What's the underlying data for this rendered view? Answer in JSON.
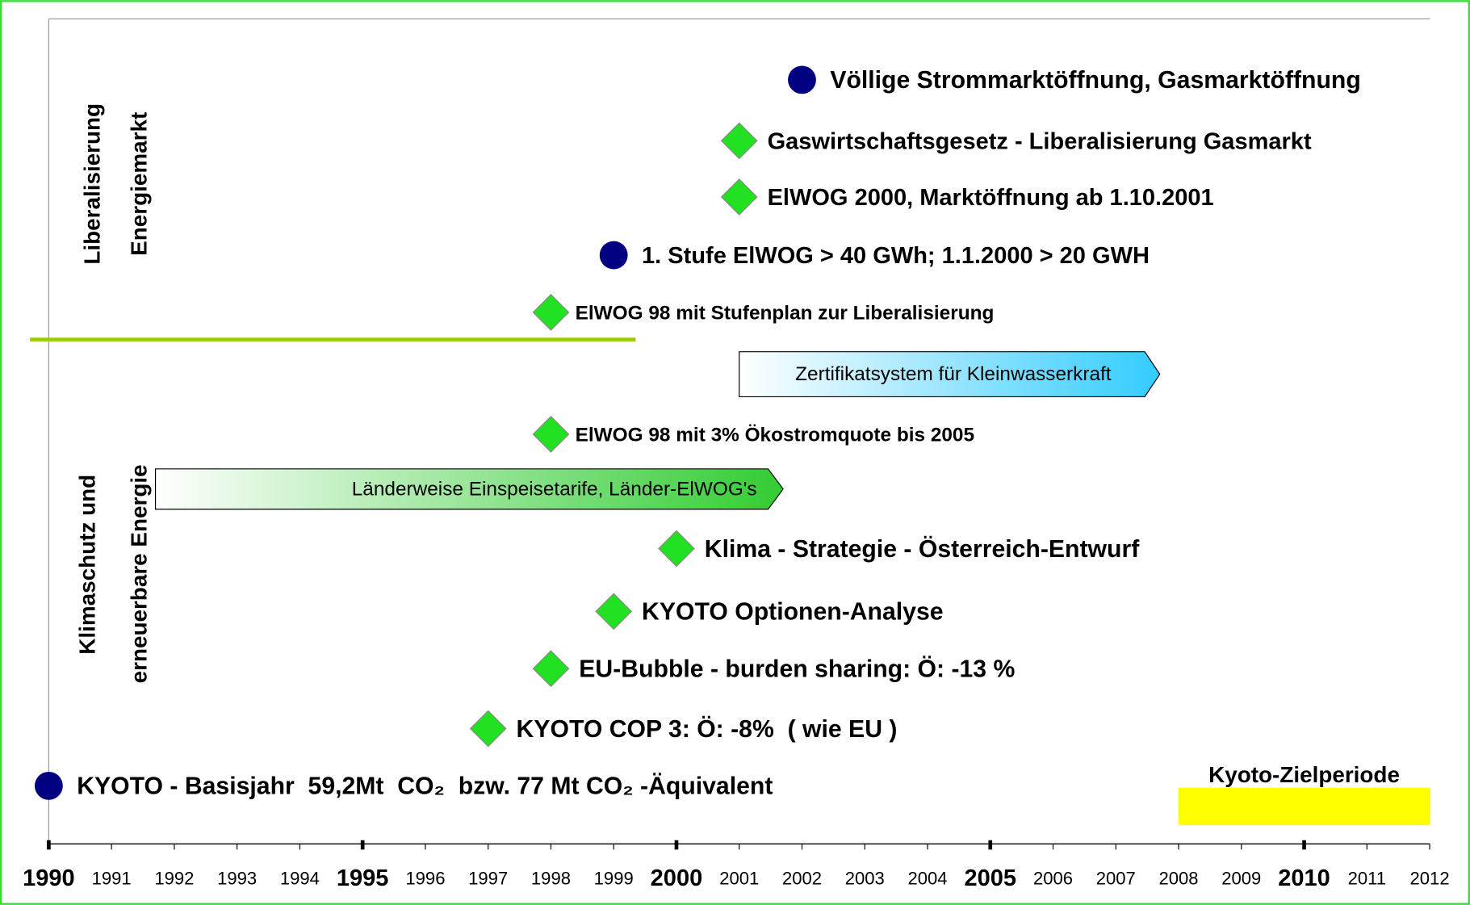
{
  "chart_data": {
    "type": "timeline",
    "xlim": [
      1990,
      2012
    ],
    "xticks": [
      1990,
      1991,
      1992,
      1993,
      1994,
      1995,
      1996,
      1997,
      1998,
      1999,
      2000,
      2001,
      2002,
      2003,
      2004,
      2005,
      2006,
      2007,
      2008,
      2009,
      2010,
      2011,
      2012
    ],
    "major_xticks": [
      1990,
      1995,
      2000,
      2005,
      2010
    ],
    "marker_colors": {
      "circle": "#000080",
      "diamond": "#22e022"
    },
    "sections": [
      {
        "lines": [
          "Liberalisierung",
          "Energiemarkt"
        ],
        "color": "#ee00ee"
      },
      {
        "lines": [
          "Klimaschutz und",
          "erneuerbare Energie"
        ],
        "color": "#0000dd"
      }
    ],
    "events": [
      {
        "label": "Völlige Strommarktöffnung, Gasmarktöffnung",
        "x": 2002,
        "marker": "circle"
      },
      {
        "label": "Gaswirtschaftsgesetz - Liberalisierung Gasmarkt",
        "x": 2001,
        "marker": "diamond"
      },
      {
        "label": "ElWOG 2000, Marktöffnung ab 1.10.2001",
        "x": 2001,
        "marker": "diamond"
      },
      {
        "label": "1. Stufe ElWOG > 40 GWh; 1.1.2000 > 20 GWH",
        "x": 1999,
        "marker": "circle"
      },
      {
        "label": "ElWOG 98 mit Stufenplan zur Liberalisierung",
        "x": 1998,
        "marker": "diamond"
      },
      {
        "label": "ElWOG 98 mit 3% Ökostromquote bis 2005",
        "x": 1998,
        "marker": "diamond"
      },
      {
        "label": "Klima - Strategie - Österreich-Entwurf",
        "x": 2000,
        "marker": "diamond"
      },
      {
        "label": "KYOTO Optionen-Analyse",
        "x": 1999,
        "marker": "diamond"
      },
      {
        "label": "EU-Bubble - burden sharing: Ö: -13 %",
        "x": 1998,
        "marker": "diamond"
      },
      {
        "label": "KYOTO COP 3: Ö: -8%  ( wie EU )",
        "x": 1997,
        "marker": "diamond"
      },
      {
        "label": "KYOTO - Basisjahr  59,2Mt  CO₂  bzw. 77 Mt CO₂ -Äquivalent",
        "x": 1990,
        "marker": "circle"
      }
    ],
    "ranges": [
      {
        "label": "Zertifikatsystem für Kleinwasserkraft",
        "start": 2001,
        "end": 2007.7,
        "kind": "arrow",
        "color": "#33ccff"
      },
      {
        "label": "Länderweise Einspeisetarife, Länder-ElWOG's",
        "start": 1991.7,
        "end": 2001.7,
        "kind": "arrow",
        "color": "#33cc33"
      },
      {
        "label": "Kyoto-Zielperiode",
        "start": 2008,
        "end": 2012,
        "kind": "bar",
        "color": "#ffff00"
      }
    ]
  }
}
